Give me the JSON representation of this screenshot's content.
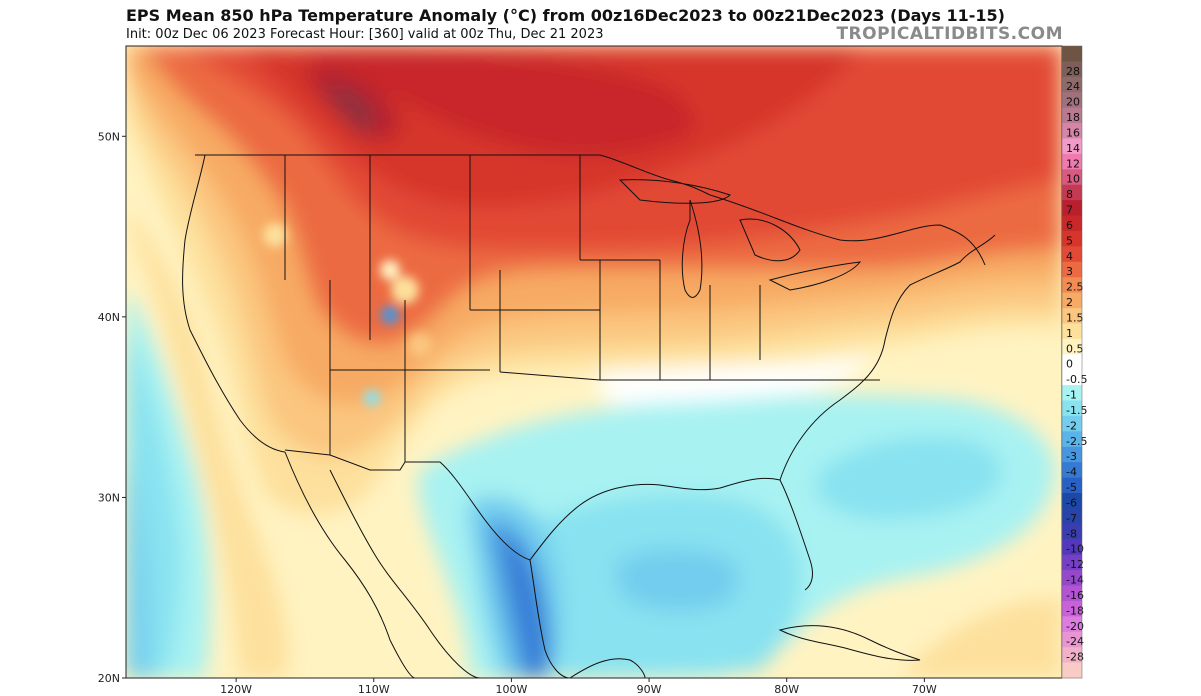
{
  "header": {
    "title": "EPS Mean 850 hPa Temperature Anomaly (°C) from 00z16Dec2023 to 00z21Dec2023 (Days 11-15)",
    "subtitle": "Init: 00z Dec 06 2023   Forecast Hour: [360]   valid at 00z Thu, Dec 21 2023",
    "brand": "TROPICALTIDBITS.COM"
  },
  "map": {
    "lon_range": [
      -128,
      -60
    ],
    "lat_range": [
      20,
      55
    ],
    "lon_ticks": [
      {
        "label": "120W",
        "lon": -120
      },
      {
        "label": "110W",
        "lon": -110
      },
      {
        "label": "100W",
        "lon": -100
      },
      {
        "label": "90W",
        "lon": -90
      },
      {
        "label": "80W",
        "lon": -80
      },
      {
        "label": "70W",
        "lon": -70
      }
    ],
    "lat_ticks": [
      {
        "label": "50N",
        "lat": 50
      },
      {
        "label": "40N",
        "lat": 40
      },
      {
        "label": "30N",
        "lat": 30
      },
      {
        "label": "20N",
        "lat": 20
      }
    ]
  },
  "legend": {
    "items": [
      {
        "label": "",
        "color": "#6e5445"
      },
      {
        "label": "28",
        "color": "#7d5e58"
      },
      {
        "label": "24",
        "color": "#8e6a6a"
      },
      {
        "label": "20",
        "color": "#a0707c"
      },
      {
        "label": "18",
        "color": "#b87a90"
      },
      {
        "label": "16",
        "color": "#d586a8"
      },
      {
        "label": "14",
        "color": "#f39bc8"
      },
      {
        "label": "12",
        "color": "#f07ab0"
      },
      {
        "label": "10",
        "color": "#d85a80"
      },
      {
        "label": "8",
        "color": "#c43a52"
      },
      {
        "label": "7",
        "color": "#b8202e"
      },
      {
        "label": "6",
        "color": "#c8282a"
      },
      {
        "label": "5",
        "color": "#d6352c"
      },
      {
        "label": "4",
        "color": "#e24a35"
      },
      {
        "label": "3",
        "color": "#ec6a42"
      },
      {
        "label": "2.5",
        "color": "#f28c52"
      },
      {
        "label": "2",
        "color": "#f7aa64"
      },
      {
        "label": "1.5",
        "color": "#fbc67f"
      },
      {
        "label": "1",
        "color": "#fde09c"
      },
      {
        "label": "0.5",
        "color": "#fff3c2"
      },
      {
        "label": "0",
        "color": "#ffffff"
      },
      {
        "label": "-0.5",
        "color": "#ffffff"
      },
      {
        "label": "-1",
        "color": "#a8f2f2"
      },
      {
        "label": "-1.5",
        "color": "#88e2f0"
      },
      {
        "label": "-2",
        "color": "#72cdee"
      },
      {
        "label": "-2.5",
        "color": "#5ab4ea"
      },
      {
        "label": "-3",
        "color": "#4696e0"
      },
      {
        "label": "-4",
        "color": "#357ad4"
      },
      {
        "label": "-5",
        "color": "#2860c4"
      },
      {
        "label": "-6",
        "color": "#1c48a8"
      },
      {
        "label": "-7",
        "color": "#2844a8"
      },
      {
        "label": "-8",
        "color": "#3a3eb0"
      },
      {
        "label": "-10",
        "color": "#5438bc"
      },
      {
        "label": "-12",
        "color": "#7640c6"
      },
      {
        "label": "-14",
        "color": "#9648cc"
      },
      {
        "label": "-16",
        "color": "#b254d4"
      },
      {
        "label": "-18",
        "color": "#c862d8"
      },
      {
        "label": "-20",
        "color": "#dc7ce0"
      },
      {
        "label": "-24",
        "color": "#e896d0"
      },
      {
        "label": "-28",
        "color": "#f1b2c8"
      },
      {
        "label": "",
        "color": "#f8ccc4"
      }
    ]
  },
  "colors": {
    "border": "#111111",
    "frame": "#222222"
  }
}
